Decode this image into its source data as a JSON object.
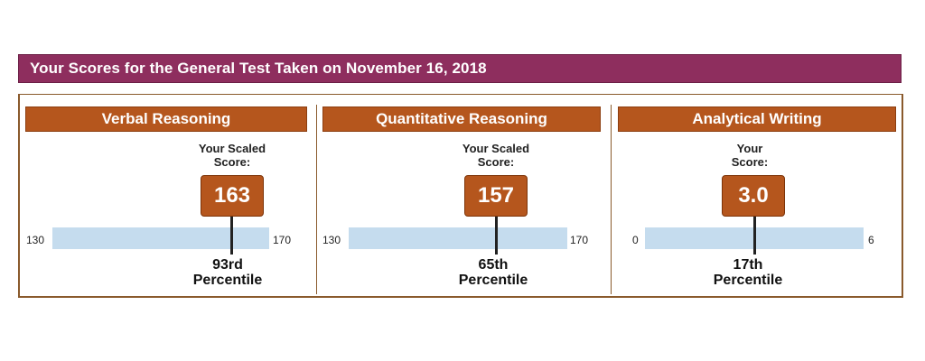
{
  "header": {
    "title": "Your Scores for the General Test Taken on November 16, 2018"
  },
  "colors": {
    "header_bg": "#8e2e5e",
    "panel_title_bg": "#b5561d",
    "score_box_bg": "#b5561d",
    "scale_bar": "#c5dcee",
    "frame_border": "#8a5a2c"
  },
  "sections": [
    {
      "title": "Verbal Reasoning",
      "score_label_line1": "Your Scaled",
      "score_label_line2": "Score:",
      "score": "163",
      "score_value": 163,
      "range_min": "130",
      "range_max": "170",
      "min_value": 130,
      "max_value": 170,
      "percentile_line1": "93rd",
      "percentile_line2": "Percentile"
    },
    {
      "title": "Quantitative Reasoning",
      "score_label_line1": "Your Scaled",
      "score_label_line2": "Score:",
      "score": "157",
      "score_value": 157,
      "range_min": "130",
      "range_max": "170",
      "min_value": 130,
      "max_value": 170,
      "percentile_line1": "65th",
      "percentile_line2": "Percentile"
    },
    {
      "title": "Analytical Writing",
      "score_label_line1": "Your",
      "score_label_line2": "Score:",
      "score": "3.0",
      "score_value": 3.0,
      "range_min": "0",
      "range_max": "6",
      "min_value": 0,
      "max_value": 6,
      "percentile_line1": "17th",
      "percentile_line2": "Percentile"
    }
  ]
}
